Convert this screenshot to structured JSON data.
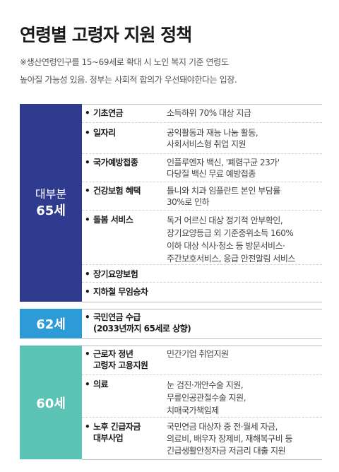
{
  "title": "연령별 고령자 지원 정책",
  "note": [
    "※생산연령인구를 15~69세로 확대 시 노인 복지 기준 연령도",
    "높아질 가능성 있음. 정부는 사회적 합의가 우선돼야한다는 입장."
  ],
  "groups": [
    {
      "sub": "대부분",
      "age": "65세",
      "color": "#2f3b8e",
      "rows": [
        {
          "item": [
            "기초연금"
          ],
          "desc": [
            "소득하위 70% 대상 지급"
          ]
        },
        {
          "item": [
            "일자리"
          ],
          "desc": [
            "공익활동과 재능 나눔 활동,",
            "사회서비스형 취업 지원"
          ]
        },
        {
          "item": [
            "국가예방접종"
          ],
          "desc": [
            "인플루엔자 백신, '폐렴구균 23가'",
            "다당질 백신 무료 예방접종"
          ]
        },
        {
          "item": [
            "건강보험 혜택"
          ],
          "desc": [
            "틀니와 치과 임플란트 본인 부담률",
            "30%로 인하"
          ]
        },
        {
          "item": [
            "돌봄 서비스"
          ],
          "desc": [
            "독거 어르신 대상 정기적 안부확인,",
            "장기요양등급 외 기준중위소득 160%",
            "이하 대상 식사·청소 등 방문서비스·",
            "주간보호서비스, 응급 안전알림 서비스"
          ]
        },
        {
          "item": [
            "장기요양보험"
          ],
          "desc": []
        },
        {
          "item": [
            "지하철 무임승차"
          ],
          "desc": []
        }
      ]
    },
    {
      "sub": "",
      "age": "62세",
      "color": "#2e9bd9",
      "rows": [
        {
          "item": [
            "국민연금 수급",
            "(2033년까지 65세로 상향)"
          ],
          "desc": []
        }
      ]
    },
    {
      "sub": "",
      "age": "60세",
      "color": "#5ac3b3",
      "rows": [
        {
          "item": [
            "근로자 정년",
            "고령자 고용지원"
          ],
          "desc": [
            "민간기업 취업지원"
          ]
        },
        {
          "item": [
            "의료"
          ],
          "desc": [
            "눈 검진·개안수술 지원,",
            "무릎인공관절수술 지원,",
            "치매국가책임제"
          ]
        },
        {
          "item": [
            "노후 긴급자금",
            "대부사업"
          ],
          "desc": [
            "국민연금 대상자 중 전·월세 자금,",
            "의료비, 배우자 장제비, 재해복구비 등",
            "긴급생활안정자금 저금리 대출 지원"
          ]
        }
      ]
    }
  ]
}
